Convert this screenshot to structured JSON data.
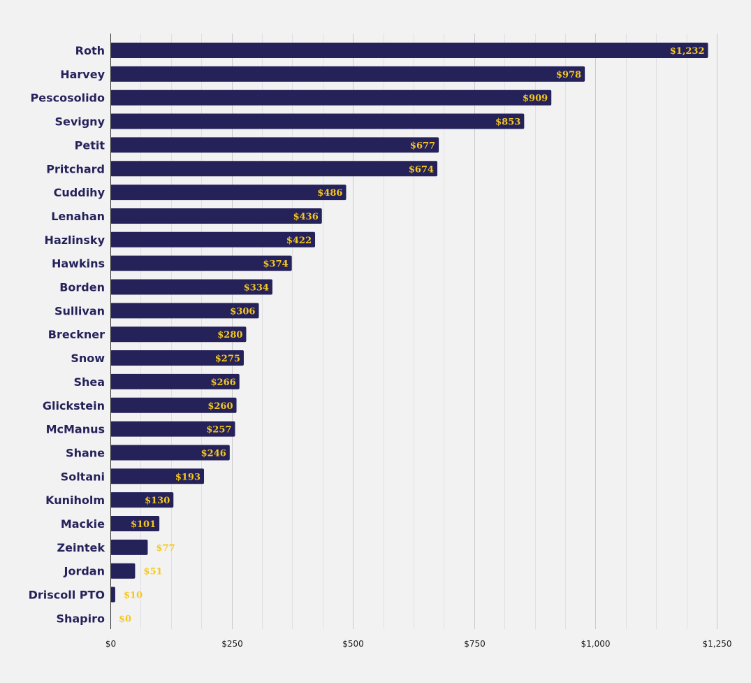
{
  "chart_data": {
    "type": "bar",
    "orientation": "horizontal",
    "title": "",
    "xlabel": "",
    "ylabel": "",
    "categories": [
      "Roth",
      "Harvey",
      "Pescosolido",
      "Sevigny",
      "Petit",
      "Pritchard",
      "Cuddihy",
      "Lenahan",
      "Hazlinsky",
      "Hawkins",
      "Borden",
      "Sullivan",
      "Breckner",
      "Snow",
      "Shea",
      "Glickstein",
      "McManus",
      "Shane",
      "Soltani",
      "Kuniholm",
      "Mackie",
      "Zeintek",
      "Jordan",
      "Driscoll PTO",
      "Shapiro"
    ],
    "values": [
      1232,
      978,
      909,
      853,
      677,
      674,
      486,
      436,
      422,
      374,
      334,
      306,
      280,
      275,
      266,
      260,
      257,
      246,
      193,
      130,
      101,
      77,
      51,
      10,
      0
    ],
    "value_labels": [
      "$1,232",
      "$978",
      "$909",
      "$853",
      "$677",
      "$674",
      "$486",
      "$436",
      "$422",
      "$374",
      "$334",
      "$306",
      "$280",
      "$275",
      "$266",
      "$260",
      "$257",
      "$246",
      "$193",
      "$130",
      "$101",
      "$77",
      "$51",
      "$10",
      "$0"
    ],
    "xlim": [
      0,
      1250
    ],
    "xticks": [
      0,
      250,
      500,
      750,
      1000,
      1250
    ],
    "xtick_labels": [
      "$0",
      "$250",
      "$500",
      "$750",
      "$1,000",
      "$1,250"
    ],
    "grid": true,
    "legend": "none",
    "colors": {
      "bar": "#25225a",
      "label": "#f5c820",
      "category_text": "#25225a",
      "gridline": "#c9c9cc",
      "minor_gridline": "#e0e0e2",
      "background": "#f2f2f3"
    }
  }
}
